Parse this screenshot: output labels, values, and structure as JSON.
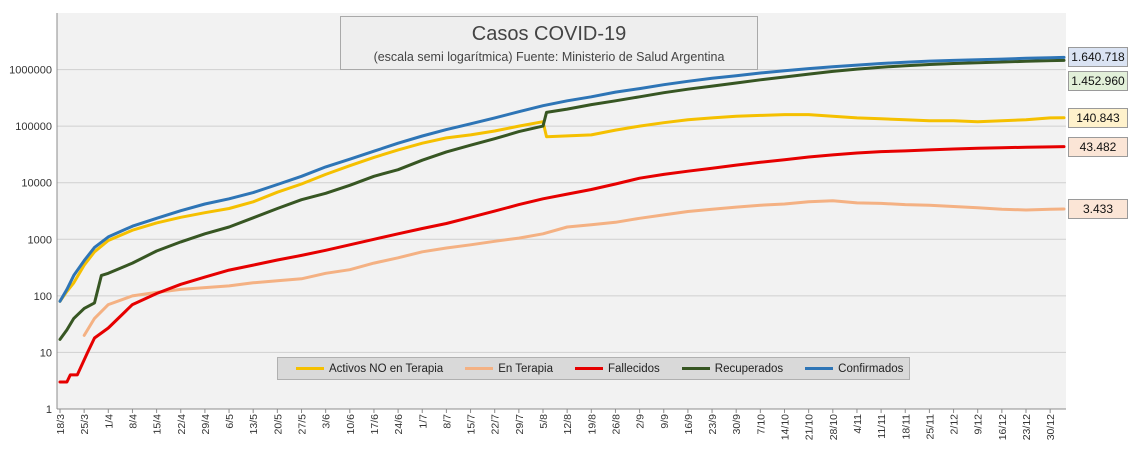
{
  "chart_data": {
    "type": "line",
    "title": "Casos COVID-19",
    "subtitle": "(escala semi logarítmica) Fuente: Ministerio de Salud  Argentina",
    "y_scale": "log",
    "ylim": [
      1,
      10000000
    ],
    "y_ticks": [
      "1",
      "10",
      "100",
      "1000",
      "10000",
      "100000",
      "1000000"
    ],
    "x_ticks": [
      "18/3",
      "25/3",
      "1/4",
      "8/4",
      "15/4",
      "22/4",
      "29/4",
      "6/5",
      "13/5",
      "20/5",
      "27/5",
      "3/6",
      "10/6",
      "17/6",
      "24/6",
      "1/7",
      "8/7",
      "15/7",
      "22/7",
      "29/7",
      "5/8",
      "12/8",
      "19/8",
      "26/8",
      "2/9",
      "9/9",
      "16/9",
      "23/9",
      "30/9",
      "7/10",
      "14/10",
      "21/10",
      "28/10",
      "4/11",
      "11/11",
      "18/11",
      "25/11",
      "2/12",
      "9/12",
      "16/12",
      "23/12",
      "30/12"
    ],
    "grid": true,
    "legend_position": "bottom-center",
    "series": [
      {
        "name": "Activos NO en Terapia",
        "color": "#F5C000",
        "points": [
          [
            "18/3",
            80
          ],
          [
            "20/3",
            120
          ],
          [
            "22/3",
            170
          ],
          [
            "25/3",
            350
          ],
          [
            "28/3",
            600
          ],
          [
            "1/4",
            950
          ],
          [
            "8/4",
            1450
          ],
          [
            "15/4",
            1950
          ],
          [
            "22/4",
            2450
          ],
          [
            "29/4",
            2950
          ],
          [
            "6/5",
            3500
          ],
          [
            "13/5",
            4600
          ],
          [
            "20/5",
            6800
          ],
          [
            "27/5",
            9500
          ],
          [
            "3/6",
            14000
          ],
          [
            "10/6",
            20000
          ],
          [
            "17/6",
            28000
          ],
          [
            "24/6",
            38000
          ],
          [
            "1/7",
            50000
          ],
          [
            "8/7",
            62000
          ],
          [
            "15/7",
            70000
          ],
          [
            "22/7",
            82000
          ],
          [
            "29/7",
            100000
          ],
          [
            "5/8",
            120000
          ],
          [
            "6/8",
            65000
          ],
          [
            "19/8",
            70000
          ],
          [
            "26/8",
            85000
          ],
          [
            "2/9",
            100000
          ],
          [
            "9/9",
            115000
          ],
          [
            "16/9",
            130000
          ],
          [
            "23/9",
            140000
          ],
          [
            "30/9",
            150000
          ],
          [
            "7/10",
            155000
          ],
          [
            "14/10",
            160000
          ],
          [
            "21/10",
            160000
          ],
          [
            "28/10",
            150000
          ],
          [
            "4/11",
            140000
          ],
          [
            "11/11",
            135000
          ],
          [
            "18/11",
            130000
          ],
          [
            "25/11",
            125000
          ],
          [
            "2/12",
            125000
          ],
          [
            "9/12",
            120000
          ],
          [
            "16/12",
            125000
          ],
          [
            "23/12",
            130000
          ],
          [
            "30/12",
            140000
          ],
          [
            "3/1",
            140843
          ]
        ]
      },
      {
        "name": "En Terapia",
        "color": "#F4B183",
        "points": [
          [
            "25/3",
            20
          ],
          [
            "28/3",
            40
          ],
          [
            "1/4",
            70
          ],
          [
            "8/4",
            100
          ],
          [
            "15/4",
            115
          ],
          [
            "22/4",
            130
          ],
          [
            "29/4",
            140
          ],
          [
            "6/5",
            150
          ],
          [
            "13/5",
            170
          ],
          [
            "20/5",
            185
          ],
          [
            "27/5",
            200
          ],
          [
            "3/6",
            250
          ],
          [
            "10/6",
            290
          ],
          [
            "17/6",
            380
          ],
          [
            "24/6",
            470
          ],
          [
            "1/7",
            600
          ],
          [
            "8/7",
            700
          ],
          [
            "15/7",
            800
          ],
          [
            "22/7",
            920
          ],
          [
            "29/7",
            1050
          ],
          [
            "5/8",
            1250
          ],
          [
            "12/8",
            1650
          ],
          [
            "19/8",
            1800
          ],
          [
            "26/8",
            2000
          ],
          [
            "2/9",
            2350
          ],
          [
            "9/9",
            2700
          ],
          [
            "16/9",
            3100
          ],
          [
            "23/9",
            3400
          ],
          [
            "30/9",
            3700
          ],
          [
            "7/10",
            4000
          ],
          [
            "14/10",
            4200
          ],
          [
            "21/10",
            4600
          ],
          [
            "28/10",
            4800
          ],
          [
            "4/11",
            4400
          ],
          [
            "11/11",
            4300
          ],
          [
            "18/11",
            4100
          ],
          [
            "25/11",
            4000
          ],
          [
            "2/12",
            3800
          ],
          [
            "9/12",
            3600
          ],
          [
            "16/12",
            3400
          ],
          [
            "23/12",
            3300
          ],
          [
            "30/12",
            3400
          ],
          [
            "3/1",
            3433
          ]
        ]
      },
      {
        "name": "Fallecidos",
        "color": "#E60000",
        "points": [
          [
            "18/3",
            3
          ],
          [
            "20/3",
            3
          ],
          [
            "21/3",
            4
          ],
          [
            "23/3",
            4
          ],
          [
            "26/3",
            10
          ],
          [
            "28/3",
            18
          ],
          [
            "1/4",
            27
          ],
          [
            "8/4",
            70
          ],
          [
            "15/4",
            110
          ],
          [
            "22/4",
            160
          ],
          [
            "29/4",
            215
          ],
          [
            "6/5",
            285
          ],
          [
            "13/5",
            350
          ],
          [
            "20/5",
            430
          ],
          [
            "27/5",
            520
          ],
          [
            "3/6",
            640
          ],
          [
            "10/6",
            800
          ],
          [
            "17/6",
            1000
          ],
          [
            "24/6",
            1250
          ],
          [
            "1/7",
            1550
          ],
          [
            "8/7",
            1900
          ],
          [
            "15/7",
            2450
          ],
          [
            "22/7",
            3150
          ],
          [
            "29/7",
            4100
          ],
          [
            "5/8",
            5200
          ],
          [
            "12/8",
            6300
          ],
          [
            "19/8",
            7600
          ],
          [
            "26/8",
            9500
          ],
          [
            "2/9",
            12000
          ],
          [
            "9/9",
            14000
          ],
          [
            "16/9",
            16000
          ],
          [
            "23/9",
            18000
          ],
          [
            "30/9",
            20500
          ],
          [
            "7/10",
            23000
          ],
          [
            "14/10",
            25500
          ],
          [
            "21/10",
            28500
          ],
          [
            "28/10",
            31000
          ],
          [
            "4/11",
            33500
          ],
          [
            "11/11",
            35500
          ],
          [
            "18/11",
            36500
          ],
          [
            "25/11",
            38000
          ],
          [
            "2/12",
            39500
          ],
          [
            "9/12",
            40500
          ],
          [
            "16/12",
            41500
          ],
          [
            "23/12",
            42500
          ],
          [
            "30/12",
            43000
          ],
          [
            "3/1",
            43482
          ]
        ]
      },
      {
        "name": "Recuperados",
        "color": "#375623",
        "points": [
          [
            "18/3",
            17
          ],
          [
            "20/3",
            25
          ],
          [
            "22/3",
            40
          ],
          [
            "25/3",
            60
          ],
          [
            "28/3",
            75
          ],
          [
            "30/3",
            230
          ],
          [
            "1/4",
            250
          ],
          [
            "8/4",
            380
          ],
          [
            "15/4",
            620
          ],
          [
            "22/4",
            900
          ],
          [
            "29/4",
            1250
          ],
          [
            "6/5",
            1650
          ],
          [
            "13/5",
            2400
          ],
          [
            "20/5",
            3500
          ],
          [
            "27/5",
            5000
          ],
          [
            "3/6",
            6500
          ],
          [
            "10/6",
            9000
          ],
          [
            "17/6",
            13000
          ],
          [
            "24/6",
            17000
          ],
          [
            "1/7",
            25000
          ],
          [
            "8/7",
            35000
          ],
          [
            "15/7",
            46000
          ],
          [
            "22/7",
            60000
          ],
          [
            "29/7",
            80000
          ],
          [
            "5/8",
            100000
          ],
          [
            "6/8",
            175000
          ],
          [
            "12/8",
            200000
          ],
          [
            "19/8",
            240000
          ],
          [
            "26/8",
            280000
          ],
          [
            "2/9",
            330000
          ],
          [
            "9/9",
            390000
          ],
          [
            "16/9",
            450000
          ],
          [
            "23/9",
            510000
          ],
          [
            "30/9",
            580000
          ],
          [
            "7/10",
            660000
          ],
          [
            "14/10",
            740000
          ],
          [
            "21/10",
            830000
          ],
          [
            "28/10",
            930000
          ],
          [
            "4/11",
            1020000
          ],
          [
            "11/11",
            1100000
          ],
          [
            "18/11",
            1170000
          ],
          [
            "25/11",
            1230000
          ],
          [
            "2/12",
            1280000
          ],
          [
            "9/12",
            1320000
          ],
          [
            "16/12",
            1360000
          ],
          [
            "23/12",
            1400000
          ],
          [
            "30/12",
            1440000
          ],
          [
            "3/1",
            1452960
          ]
        ]
      },
      {
        "name": "Confirmados",
        "color": "#2E75B6",
        "points": [
          [
            "18/3",
            80
          ],
          [
            "20/3",
            130
          ],
          [
            "22/3",
            230
          ],
          [
            "25/3",
            420
          ],
          [
            "28/3",
            720
          ],
          [
            "1/4",
            1100
          ],
          [
            "8/4",
            1700
          ],
          [
            "15/4",
            2350
          ],
          [
            "22/4",
            3200
          ],
          [
            "29/4",
            4200
          ],
          [
            "6/5",
            5200
          ],
          [
            "13/5",
            6700
          ],
          [
            "20/5",
            9300
          ],
          [
            "27/5",
            13000
          ],
          [
            "3/6",
            19000
          ],
          [
            "10/6",
            26000
          ],
          [
            "17/6",
            36000
          ],
          [
            "24/6",
            50000
          ],
          [
            "1/7",
            67000
          ],
          [
            "8/7",
            87000
          ],
          [
            "15/7",
            110000
          ],
          [
            "22/7",
            140000
          ],
          [
            "29/7",
            180000
          ],
          [
            "5/8",
            230000
          ],
          [
            "12/8",
            280000
          ],
          [
            "19/8",
            330000
          ],
          [
            "26/8",
            400000
          ],
          [
            "2/9",
            460000
          ],
          [
            "9/9",
            540000
          ],
          [
            "16/9",
            620000
          ],
          [
            "23/9",
            700000
          ],
          [
            "30/9",
            780000
          ],
          [
            "7/10",
            870000
          ],
          [
            "14/10",
            950000
          ],
          [
            "21/10",
            1040000
          ],
          [
            "28/10",
            1120000
          ],
          [
            "4/11",
            1200000
          ],
          [
            "11/11",
            1280000
          ],
          [
            "18/11",
            1350000
          ],
          [
            "25/11",
            1410000
          ],
          [
            "2/12",
            1450000
          ],
          [
            "9/12",
            1490000
          ],
          [
            "16/12",
            1530000
          ],
          [
            "23/12",
            1580000
          ],
          [
            "30/12",
            1620000
          ],
          [
            "3/1",
            1640718
          ]
        ]
      }
    ],
    "value_labels": [
      {
        "text": "1.640.718",
        "series": "Confirmados",
        "bg": "#DAE3F3"
      },
      {
        "text": "1.452.960",
        "series": "Recuperados",
        "bg": "#E2F0D9"
      },
      {
        "text": "140.843",
        "series": "Activos NO en Terapia",
        "bg": "#FFF2CC"
      },
      {
        "text": "43.482",
        "series": "Fallecidos",
        "bg": "#FBE5D6"
      },
      {
        "text": "3.433",
        "series": "En Terapia",
        "bg": "#FBE5D6"
      }
    ]
  }
}
